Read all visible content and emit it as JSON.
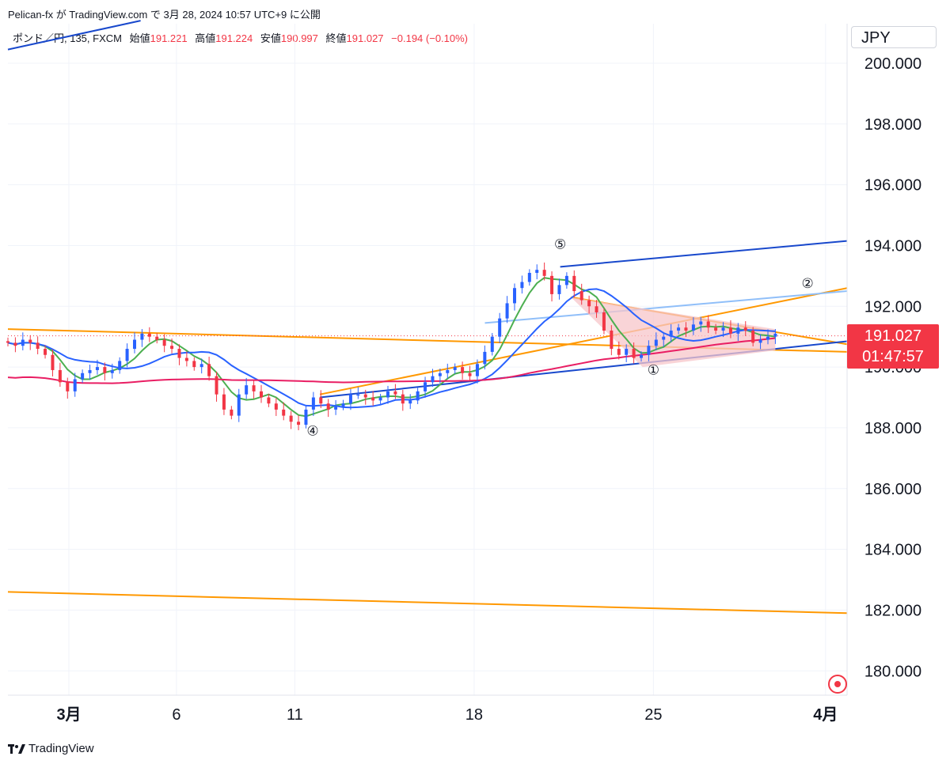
{
  "header": {
    "publish_line": "Pelican-fx が TradingView.com で 3月 28, 2024 10:57 UTC+9 に公開"
  },
  "legend": {
    "symbol": "ポンド／円, 135, FXCM",
    "open_label": "始値",
    "open_value": "191.221",
    "high_label": "高値",
    "high_value": "191.224",
    "low_label": "安値",
    "low_value": "190.997",
    "close_label": "終値",
    "close_value": "191.027",
    "change": "−0.194 (−0.10%)"
  },
  "currency_button": "JPY",
  "price_tag": {
    "price": "191.027",
    "countdown": "01:47:57"
  },
  "footer": {
    "brand": "TradingView"
  },
  "colors": {
    "up": "#2962ff",
    "down": "#f23645",
    "orange_line": "#ff9800",
    "navy_line": "#1848cc",
    "light_blue_line": "#90bff9",
    "ma_green": "#4caf50",
    "ma_blue": "#2962ff",
    "ma_red": "#e91e63",
    "triangle_fill": "#f7c5c9"
  },
  "chart_data": {
    "type": "candlestick",
    "y_axis": {
      "ticks": [
        "200.000",
        "198.000",
        "196.000",
        "194.000",
        "192.000",
        "190.000",
        "188.000",
        "186.000",
        "184.000",
        "182.000",
        "180.000"
      ],
      "ylim": [
        179.2,
        201.3
      ]
    },
    "x_axis": {
      "ticks": [
        {
          "label": "3月",
          "day": 0,
          "bold": true
        },
        {
          "label": "6",
          "day": 3,
          "bold": false
        },
        {
          "label": "11",
          "day": 6.3,
          "bold": false
        },
        {
          "label": "18",
          "day": 11.3,
          "bold": false
        },
        {
          "label": "25",
          "day": 16.3,
          "bold": false
        },
        {
          "label": "4月",
          "day": 21.1,
          "bold": true
        }
      ],
      "xlim": [
        -1.7,
        21.7
      ]
    },
    "close_series": [
      190.8,
      190.7,
      190.9,
      190.8,
      190.6,
      190.4,
      189.9,
      189.5,
      189.2,
      189.6,
      189.8,
      189.9,
      190.0,
      189.8,
      189.9,
      190.2,
      190.6,
      190.9,
      191.1,
      191.0,
      190.9,
      190.7,
      190.6,
      190.3,
      190.2,
      190.0,
      190.1,
      189.7,
      189.1,
      188.6,
      188.4,
      189.1,
      189.4,
      189.2,
      189.0,
      188.8,
      188.6,
      188.4,
      188.2,
      188.1,
      188.6,
      189.0,
      188.8,
      188.6,
      188.7,
      188.8,
      189.1,
      189.1,
      189.0,
      188.9,
      189.0,
      189.2,
      189.1,
      188.8,
      188.9,
      189.2,
      189.5,
      189.7,
      189.8,
      189.9,
      190.0,
      189.8,
      189.7,
      190.1,
      190.5,
      191.0,
      191.6,
      192.1,
      192.6,
      192.8,
      193.1,
      193.2,
      193.0,
      192.4,
      192.7,
      193.0,
      192.5,
      192.2,
      192.0,
      191.8,
      191.2,
      190.6,
      190.4,
      190.6,
      190.3,
      190.4,
      190.7,
      190.9,
      191.0,
      191.2,
      191.3,
      191.2,
      191.4,
      191.5,
      191.3,
      191.2,
      191.3,
      191.1,
      191.3,
      191.2,
      190.8,
      190.9,
      191.0,
      191.1
    ],
    "closing_price": 191.027,
    "annotations": [
      {
        "text": "⑤",
        "day": 13.7,
        "price": 193.9
      },
      {
        "text": "④",
        "day": 6.8,
        "price": 187.75
      },
      {
        "text": "①",
        "day": 16.3,
        "price": 189.75
      },
      {
        "text": "②",
        "day": 20.6,
        "price": 192.6
      }
    ],
    "lines": [
      {
        "color": "navy",
        "from": [
          -1.7,
          200.45
        ],
        "to": [
          2.0,
          201.4
        ]
      },
      {
        "color": "navy",
        "from": [
          13.7,
          193.3
        ],
        "to": [
          21.7,
          194.15
        ]
      },
      {
        "color": "orange",
        "from": [
          -1.7,
          191.25
        ],
        "to": [
          21.7,
          190.5
        ]
      },
      {
        "color": "orange",
        "from": [
          -1.7,
          182.6
        ],
        "to": [
          21.7,
          181.9
        ]
      },
      {
        "color": "orange",
        "from": [
          7.0,
          189.1
        ],
        "to": [
          21.7,
          192.6
        ]
      },
      {
        "color": "orange",
        "from": [
          14.0,
          192.3
        ],
        "to": [
          21.7,
          190.75
        ]
      },
      {
        "color": "navy",
        "from": [
          7.0,
          189.0
        ],
        "to": [
          21.7,
          190.85
        ]
      },
      {
        "color": "lightblue",
        "from": [
          11.6,
          191.45
        ],
        "to": [
          21.7,
          192.5
        ]
      }
    ],
    "triangle": [
      [
        14.0,
        192.3
      ],
      [
        16.0,
        190.0
      ],
      [
        19.7,
        190.55
      ],
      [
        19.7,
        191.25
      ]
    ]
  }
}
